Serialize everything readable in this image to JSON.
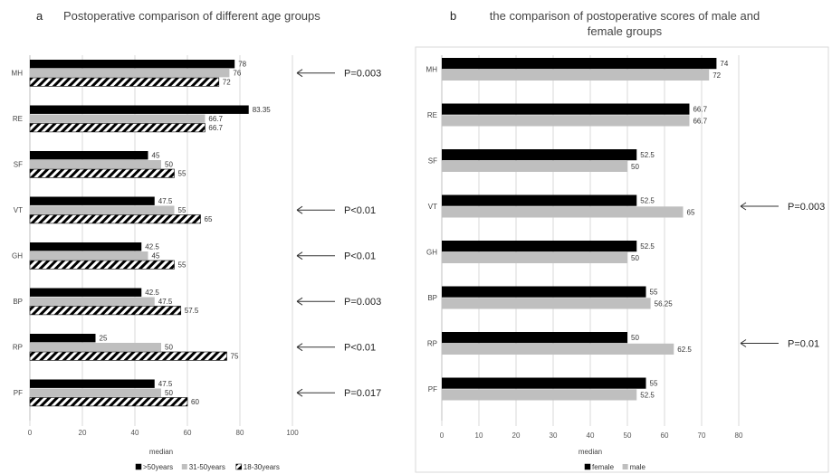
{
  "panels": [
    {
      "letter": "a",
      "title_lines": [
        "Postoperative comparison of different age groups"
      ],
      "xlabel": "median",
      "annotations": [
        {
          "category": "MH",
          "text": "P=0.003"
        },
        {
          "category": "VT",
          "text": "P<0.01"
        },
        {
          "category": "GH",
          "text": "P<0.01"
        },
        {
          "category": "BP",
          "text": "P=0.003"
        },
        {
          "category": "RP",
          "text": "P<0.01"
        },
        {
          "category": "PF",
          "text": "P=0.017"
        }
      ]
    },
    {
      "letter": "b",
      "title_lines": [
        "the comparison of postoperative scores of male and",
        "female groups"
      ],
      "xlabel": "median",
      "annotations": [
        {
          "category": "VT",
          "text": "P=0.003"
        },
        {
          "category": "RP",
          "text": "P=0.01"
        }
      ]
    }
  ],
  "colors": {
    "black": "#000000",
    "gray": "#bfbfbf",
    "grid": "#d9d9d9",
    "arrow": "#333333"
  },
  "chart_data": [
    {
      "type": "bar",
      "orientation": "horizontal",
      "title": "Postoperative comparison of different age groups",
      "xlabel": "median",
      "categories": [
        "MH",
        "RE",
        "SF",
        "VT",
        "GH",
        "BP",
        "RP",
        "PF"
      ],
      "xlim": [
        0,
        100
      ],
      "xticks": [
        0,
        20,
        40,
        60,
        80,
        100
      ],
      "grid": true,
      "legend_position": "bottom",
      "series": [
        {
          "name": ">50years",
          "fill": "black",
          "values": [
            78,
            83.35,
            45,
            47.5,
            42.5,
            42.5,
            25,
            47.5
          ],
          "labels": [
            "78",
            "83.35",
            "45",
            "47.5",
            "42.5",
            "42.5",
            "25",
            "47.5"
          ]
        },
        {
          "name": "31-50years",
          "fill": "gray",
          "values": [
            76,
            66.7,
            50,
            55,
            45,
            47.5,
            50,
            50
          ],
          "labels": [
            "76",
            "66.7",
            "50",
            "55",
            "45",
            "47.5",
            "50",
            "50"
          ]
        },
        {
          "name": "18-30years",
          "fill": "hatch",
          "values": [
            72,
            66.7,
            55,
            65,
            55,
            57.5,
            75,
            60
          ],
          "labels": [
            "72",
            "66.7",
            "55",
            "65",
            "55",
            "57.5",
            "75",
            "60"
          ]
        }
      ]
    },
    {
      "type": "bar",
      "orientation": "horizontal",
      "title": "the comparison of postoperative scores of male and female groups",
      "xlabel": "median",
      "categories": [
        "MH",
        "RE",
        "SF",
        "VT",
        "GH",
        "BP",
        "RP",
        "PF"
      ],
      "xlim": [
        0,
        80
      ],
      "xticks": [
        0,
        10,
        20,
        30,
        40,
        50,
        60,
        70,
        80
      ],
      "grid": true,
      "legend_position": "bottom",
      "series": [
        {
          "name": "female",
          "fill": "black",
          "values": [
            74,
            66.7,
            52.5,
            52.5,
            52.5,
            55,
            50,
            55
          ],
          "labels": [
            "74",
            "66.7",
            "52.5",
            "52.5",
            "52.5",
            "55",
            "50",
            "55"
          ]
        },
        {
          "name": "male",
          "fill": "gray",
          "values": [
            72,
            66.7,
            50,
            65,
            50,
            56.25,
            62.5,
            52.5
          ],
          "labels": [
            "72",
            "66.7",
            "50",
            "65",
            "50",
            "56.25",
            "62.5",
            "52.5"
          ]
        }
      ]
    }
  ]
}
